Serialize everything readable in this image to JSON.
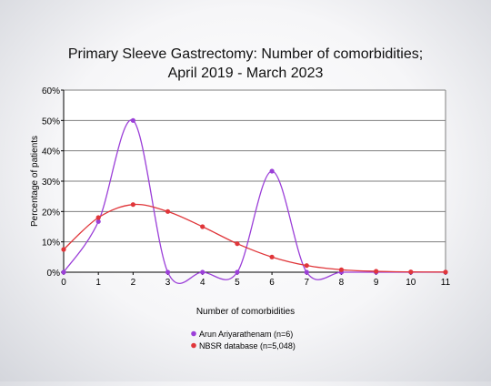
{
  "chart_data": {
    "type": "line",
    "title_lines": [
      "Primary Sleeve Gastrectomy: Number of comorbidities;",
      "April 2019 - March 2023"
    ],
    "xlabel": "Number of comorbidities",
    "ylabel": "Percentage of patients",
    "x": [
      0,
      1,
      2,
      3,
      4,
      5,
      6,
      7,
      8,
      9,
      10,
      11
    ],
    "x_tick_labels": [
      "0",
      "1",
      "2",
      "3",
      "4",
      "5",
      "6",
      "7",
      "8",
      "9",
      "10",
      "11"
    ],
    "y_ticks": [
      0,
      10,
      20,
      30,
      40,
      50,
      60
    ],
    "y_tick_labels": [
      "0%",
      "10%",
      "20%",
      "30%",
      "40%",
      "50%",
      "60%"
    ],
    "xlim": [
      0,
      11
    ],
    "ylim": [
      0,
      60
    ],
    "grid": true,
    "legend_position": "bottom-center",
    "series": [
      {
        "name": "Arun Ariyarathenam (n=6)",
        "color": "#9b3fd8",
        "values": [
          0,
          16.7,
          50.0,
          0,
          0,
          0,
          33.3,
          0,
          0,
          0,
          0,
          0
        ]
      },
      {
        "name": "NBSR database (n=5,048)",
        "color": "#e0363a",
        "values": [
          7.5,
          18.0,
          22.3,
          20.0,
          15.0,
          9.4,
          5.0,
          2.2,
          0.8,
          0.3,
          0.1,
          0.05
        ]
      }
    ]
  }
}
